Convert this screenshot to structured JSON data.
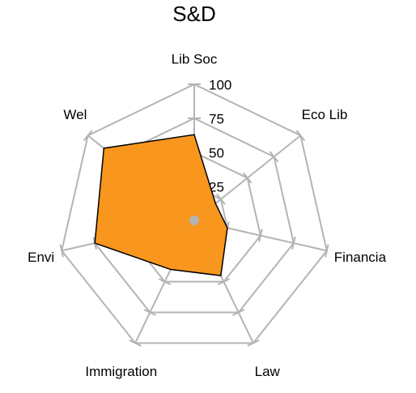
{
  "chart_data": {
    "type": "radar",
    "title": "S&D",
    "categories": [
      "Lib Soc",
      "Eco Lib",
      "Financia",
      "Law",
      "Immigration",
      "Envi",
      "Wel"
    ],
    "values": [
      63,
      20,
      25,
      45,
      40,
      75,
      85
    ],
    "color": "#f8961e",
    "ylim": [
      0,
      100
    ],
    "yticks": [
      0,
      25,
      50,
      75,
      100
    ],
    "grid": true
  }
}
